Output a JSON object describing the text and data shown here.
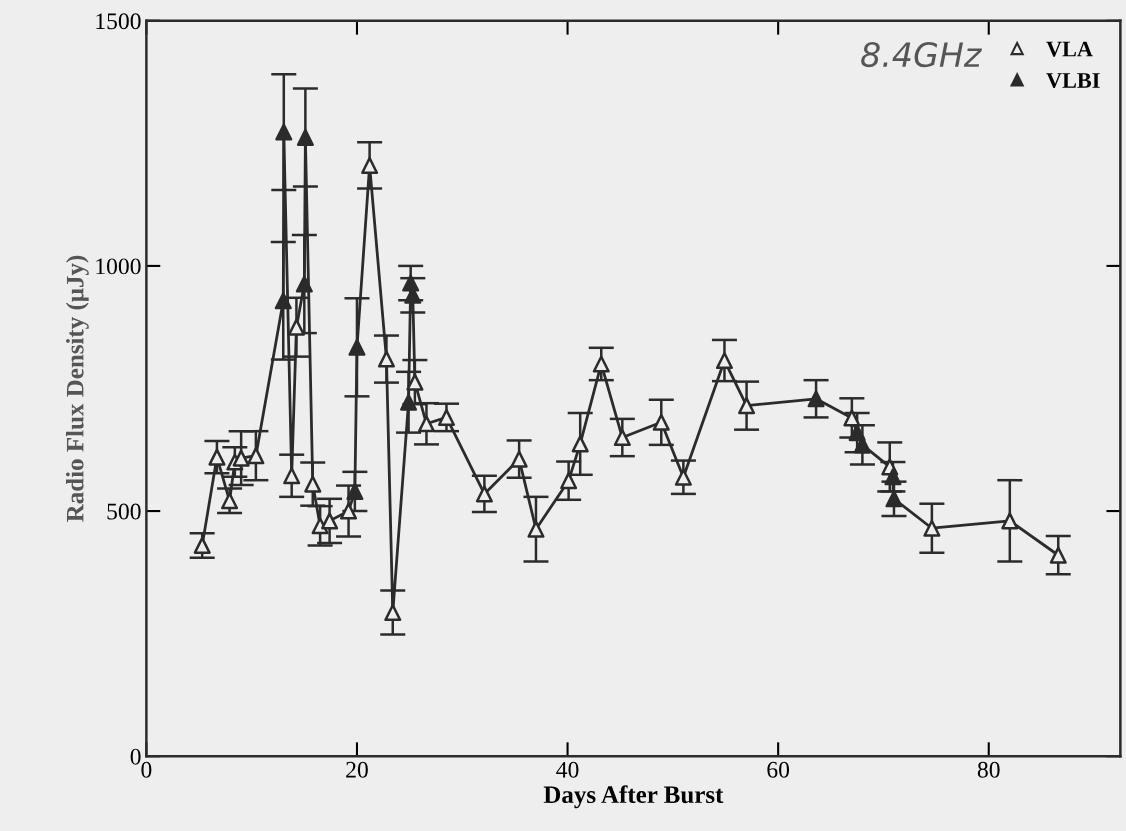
{
  "chart_data": {
    "type": "scatter",
    "xlabel": "Days After Burst",
    "ylabel": "Radio Flux Density (μJy)",
    "xlim": [
      0,
      92.5
    ],
    "xticks": [
      0,
      20,
      40,
      60,
      80
    ],
    "ylim": [
      0,
      1500
    ],
    "yticks": [
      0,
      500,
      1000,
      1500
    ],
    "grid": false,
    "legend": "top right",
    "annotations": [
      "8.4GHz"
    ],
    "series": [
      {
        "type": "line",
        "color": "#2b2b2b",
        "marker": "none",
        "line_style": "solid",
        "x": [
          5.3,
          6.7,
          7.9,
          8.4,
          9.0,
          10.4,
          13.0,
          13.05,
          13.8,
          14.25,
          15.0,
          15.1,
          15.8,
          16.5,
          17.4,
          19.2,
          19.8,
          20.0,
          21.2,
          22.8,
          23.4,
          24.9,
          25.1,
          25.3,
          25.5,
          26.6,
          28.5,
          32.1,
          35.4,
          37.0,
          40.1,
          41.2,
          43.2,
          45.2,
          48.9,
          51.0,
          54.9,
          57.0,
          63.6,
          67.0,
          67.5,
          68.0,
          70.6,
          70.9,
          71.0,
          74.6,
          82.0,
          86.6
        ],
        "values": [
          430,
          610,
          521,
          600,
          608,
          613,
          929,
          1273,
          572,
          875,
          963,
          1262,
          555,
          470,
          480,
          500,
          540,
          834,
          1205,
          810,
          293,
          722,
          965,
          940,
          763,
          678,
          691,
          535,
          606,
          463,
          562,
          637,
          800,
          650,
          681,
          569,
          807,
          715,
          729,
          690,
          660,
          635,
          590,
          570,
          525,
          465,
          480,
          410
        ]
      },
      {
        "name": "VLA",
        "color": "#2b2b2b",
        "marker": "triangle",
        "x": [
          5.3,
          6.7,
          7.9,
          8.4,
          9.0,
          10.4,
          13.8,
          14.25,
          15.8,
          16.5,
          17.4,
          19.2,
          21.2,
          22.8,
          23.4,
          25.5,
          26.6,
          28.5,
          32.1,
          35.4,
          37.0,
          40.1,
          41.2,
          43.2,
          45.2,
          48.9,
          51.0,
          54.9,
          57.0,
          67.0,
          70.6,
          74.6,
          82.0,
          86.6
        ],
        "values": [
          430,
          610,
          521,
          600,
          608,
          613,
          572,
          875,
          555,
          470,
          480,
          500,
          1205,
          810,
          293,
          763,
          678,
          691,
          535,
          606,
          463,
          562,
          637,
          800,
          650,
          681,
          569,
          807,
          715,
          690,
          590,
          465,
          480,
          410
        ],
        "errors": [
          25,
          33,
          25,
          30,
          55,
          50,
          43,
          60,
          44,
          40,
          45,
          52,
          47,
          48,
          45,
          45,
          42,
          28,
          37,
          38,
          66,
          39,
          63,
          33,
          38,
          46,
          34,
          42,
          49,
          40,
          50,
          50,
          83,
          39
        ]
      },
      {
        "name": "VLBI",
        "color": "#2b2b2b",
        "marker": "triangle",
        "x": [
          13.0,
          13.05,
          15.0,
          15.1,
          19.8,
          20.0,
          24.9,
          25.1,
          25.3,
          63.6,
          67.5,
          68.0,
          70.9,
          71.0
        ],
        "values": [
          929,
          1273,
          963,
          1262,
          540,
          834,
          722,
          965,
          940,
          729,
          660,
          635,
          570,
          525
        ],
        "errors": [
          120,
          118,
          100,
          100,
          40,
          100,
          62,
          35,
          35,
          38,
          40,
          40,
          30,
          35
        ]
      }
    ]
  }
}
